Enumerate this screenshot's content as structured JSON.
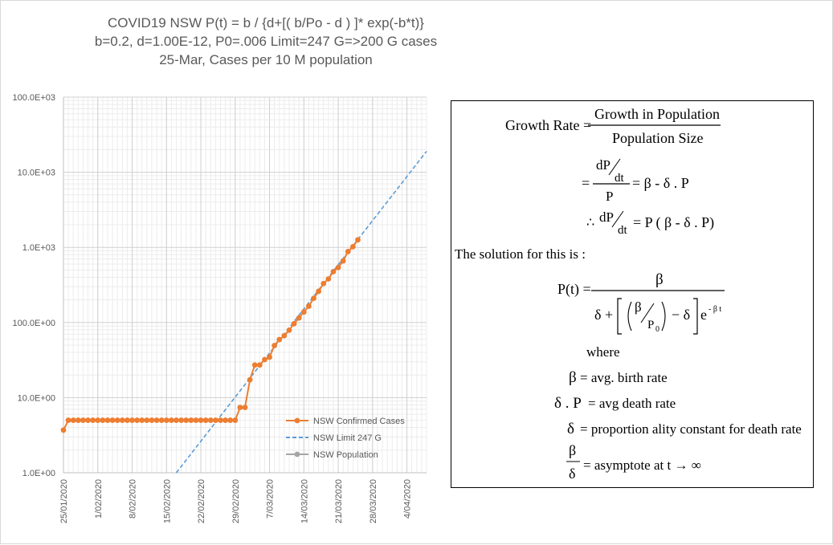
{
  "chart_data": {
    "type": "line",
    "title": "COVID19 NSW P(t) = b / {d+[( b/Po - d ) ]* exp(-b*t)}",
    "subtitle_lines": [
      "b=0.2, d=1.00E-12, P0=.006 Limit=247 G=>200 G cases",
      "25-Mar, Cases per 10 M population"
    ],
    "xlabel": "",
    "ylabel": "",
    "y_scale": "log",
    "ylim": [
      1,
      100000
    ],
    "y_ticks": [
      1,
      10,
      100,
      1000,
      10000,
      100000
    ],
    "y_tick_labels": [
      "1.0E+00",
      "10.0E+00",
      "100.0E+00",
      "1.0E+03",
      "10.0E+03",
      "100.0E+03"
    ],
    "x_type": "date",
    "xlim": [
      "2020-01-25",
      "2020-04-08"
    ],
    "x_tick_labels": [
      "25/01/2020",
      "1/02/2020",
      "8/02/2020",
      "15/02/2020",
      "22/02/2020",
      "29/02/2020",
      "7/03/2020",
      "14/03/2020",
      "21/03/2020",
      "28/03/2020",
      "4/04/2020"
    ],
    "x_tick_dates": [
      "2020-01-25",
      "2020-02-01",
      "2020-02-08",
      "2020-02-15",
      "2020-02-22",
      "2020-02-29",
      "2020-03-07",
      "2020-03-14",
      "2020-03-21",
      "2020-03-28",
      "2020-04-04"
    ],
    "grid": true,
    "legend_position": "bottom-right-inside",
    "series": [
      {
        "name": "NSW Confirmed Cases",
        "color": "#ed7d31",
        "style": "solid-with-markers",
        "points": [
          [
            "2020-01-25",
            3.7
          ],
          [
            "2020-01-26",
            5.0
          ],
          [
            "2020-01-27",
            5.0
          ],
          [
            "2020-01-28",
            5.0
          ],
          [
            "2020-01-29",
            5.0
          ],
          [
            "2020-01-30",
            5.0
          ],
          [
            "2020-01-31",
            5.0
          ],
          [
            "2020-02-01",
            5.0
          ],
          [
            "2020-02-02",
            5.0
          ],
          [
            "2020-02-03",
            5.0
          ],
          [
            "2020-02-04",
            5.0
          ],
          [
            "2020-02-05",
            5.0
          ],
          [
            "2020-02-06",
            5.0
          ],
          [
            "2020-02-07",
            5.0
          ],
          [
            "2020-02-08",
            5.0
          ],
          [
            "2020-02-09",
            5.0
          ],
          [
            "2020-02-10",
            5.0
          ],
          [
            "2020-02-11",
            5.0
          ],
          [
            "2020-02-12",
            5.0
          ],
          [
            "2020-02-13",
            5.0
          ],
          [
            "2020-02-14",
            5.0
          ],
          [
            "2020-02-15",
            5.0
          ],
          [
            "2020-02-16",
            5.0
          ],
          [
            "2020-02-17",
            5.0
          ],
          [
            "2020-02-18",
            5.0
          ],
          [
            "2020-02-19",
            5.0
          ],
          [
            "2020-02-20",
            5.0
          ],
          [
            "2020-02-21",
            5.0
          ],
          [
            "2020-02-22",
            5.0
          ],
          [
            "2020-02-23",
            5.0
          ],
          [
            "2020-02-24",
            5.0
          ],
          [
            "2020-02-25",
            5.0
          ],
          [
            "2020-02-26",
            5.0
          ],
          [
            "2020-02-27",
            5.0
          ],
          [
            "2020-02-28",
            5.0
          ],
          [
            "2020-02-29",
            5.0
          ],
          [
            "2020-03-01",
            7.4
          ],
          [
            "2020-03-02",
            7.4
          ],
          [
            "2020-03-03",
            17.3
          ],
          [
            "2020-03-04",
            27.2
          ],
          [
            "2020-03-05",
            27.2
          ],
          [
            "2020-03-06",
            32.1
          ],
          [
            "2020-03-07",
            34.6
          ],
          [
            "2020-03-08",
            49.4
          ],
          [
            "2020-03-09",
            59.3
          ],
          [
            "2020-03-10",
            66.7
          ],
          [
            "2020-03-11",
            79.0
          ],
          [
            "2020-03-12",
            96.3
          ],
          [
            "2020-03-13",
            115.0
          ],
          [
            "2020-03-14",
            138.0
          ],
          [
            "2020-03-15",
            165.0
          ],
          [
            "2020-03-16",
            210.0
          ],
          [
            "2020-03-17",
            260.0
          ],
          [
            "2020-03-18",
            330.0
          ],
          [
            "2020-03-19",
            380.0
          ],
          [
            "2020-03-20",
            475.0
          ],
          [
            "2020-03-21",
            540.0
          ],
          [
            "2020-03-22",
            660.0
          ],
          [
            "2020-03-23",
            880.0
          ],
          [
            "2020-03-24",
            1020.0
          ],
          [
            "2020-03-25",
            1260.0
          ]
        ]
      },
      {
        "name": "NSW Limit 247 G",
        "color": "#5b9bd5",
        "style": "dashed",
        "points": [
          [
            "2020-02-17",
            1.0
          ],
          [
            "2020-04-08",
            19000.0
          ]
        ]
      },
      {
        "name": "NSW Population",
        "color": "#a5a5a5",
        "style": "solid-with-markers",
        "points": []
      }
    ]
  },
  "formula_panel": {
    "growth_rate_label": "Growth Rate =",
    "numerator": "Growth in Population",
    "denominator": "Population Size",
    "solution_text": "The solution for this is :",
    "pt_label": "P(t) =",
    "where_text": "where",
    "defs": [
      "= avg. birth rate",
      "= avg  death rate",
      "= proportion ality constant  for death rate",
      "= asymptote at t → ∞"
    ]
  }
}
